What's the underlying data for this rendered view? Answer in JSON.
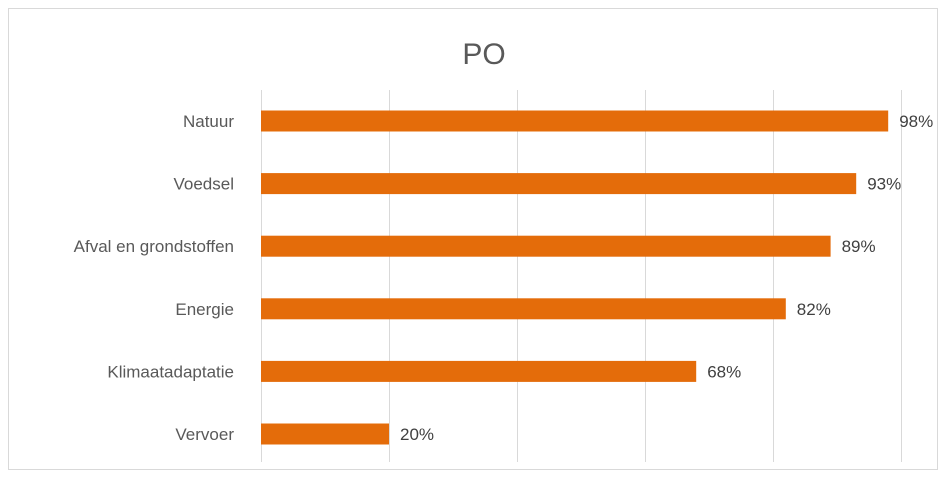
{
  "chart_data": {
    "type": "bar",
    "orientation": "horizontal",
    "title": "PO",
    "categories": [
      "Natuur",
      "Voedsel",
      "Afval en grondstoffen",
      "Energie",
      "Klimaatadaptatie",
      "Vervoer"
    ],
    "values": [
      98,
      93,
      89,
      82,
      68,
      20
    ],
    "value_labels": [
      "98%",
      "93%",
      "89%",
      "82%",
      "68%",
      "20%"
    ],
    "xlim": [
      0,
      100
    ],
    "x_gridlines": [
      0,
      20,
      40,
      60,
      80,
      100
    ],
    "grid": true,
    "legend": "none",
    "bar_color": "#E46C0A"
  }
}
